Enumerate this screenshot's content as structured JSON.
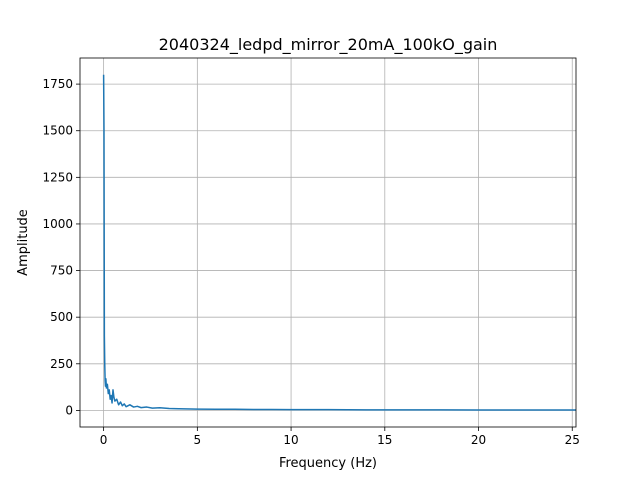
{
  "chart_data": {
    "type": "line",
    "title": "2040324_ledpd_mirror_20mA_100kO_gain",
    "xlabel": "Frequency (Hz)",
    "ylabel": "Amplitude",
    "xlim": [
      -1.26,
      25.2
    ],
    "ylim": [
      -89,
      1890
    ],
    "xticks": [
      0,
      5,
      10,
      15,
      20,
      25
    ],
    "xtick_labels": [
      "0",
      "5",
      "10",
      "15",
      "20",
      "25"
    ],
    "yticks": [
      0,
      250,
      500,
      750,
      1000,
      1250,
      1500,
      1750
    ],
    "ytick_labels": [
      "0",
      "250",
      "500",
      "750",
      "1000",
      "1250",
      "1500",
      "1750"
    ],
    "grid": true,
    "legend": "none",
    "series": [
      {
        "color": "#1f77b4",
        "x": [
          0,
          0.02,
          0.04,
          0.06,
          0.08,
          0.1,
          0.12,
          0.15,
          0.2,
          0.25,
          0.3,
          0.35,
          0.4,
          0.45,
          0.5,
          0.55,
          0.6,
          0.7,
          0.8,
          0.9,
          1.0,
          1.1,
          1.2,
          1.4,
          1.6,
          1.8,
          2.0,
          2.3,
          2.6,
          3.0,
          3.5,
          4.0,
          5.0,
          6.0,
          7.0,
          8.0,
          9.0,
          10.0,
          12.0,
          14.0,
          16.0,
          18.0,
          20.0,
          22.0,
          24.0,
          25.2
        ],
        "y": [
          1800,
          1500,
          400,
          250,
          160,
          130,
          170,
          120,
          140,
          90,
          110,
          60,
          80,
          40,
          110,
          70,
          50,
          60,
          30,
          45,
          25,
          35,
          20,
          30,
          18,
          22,
          15,
          18,
          12,
          14,
          10,
          9,
          7,
          6,
          6,
          5,
          5,
          4,
          4,
          3,
          3,
          3,
          2,
          2,
          2,
          2
        ]
      }
    ]
  }
}
